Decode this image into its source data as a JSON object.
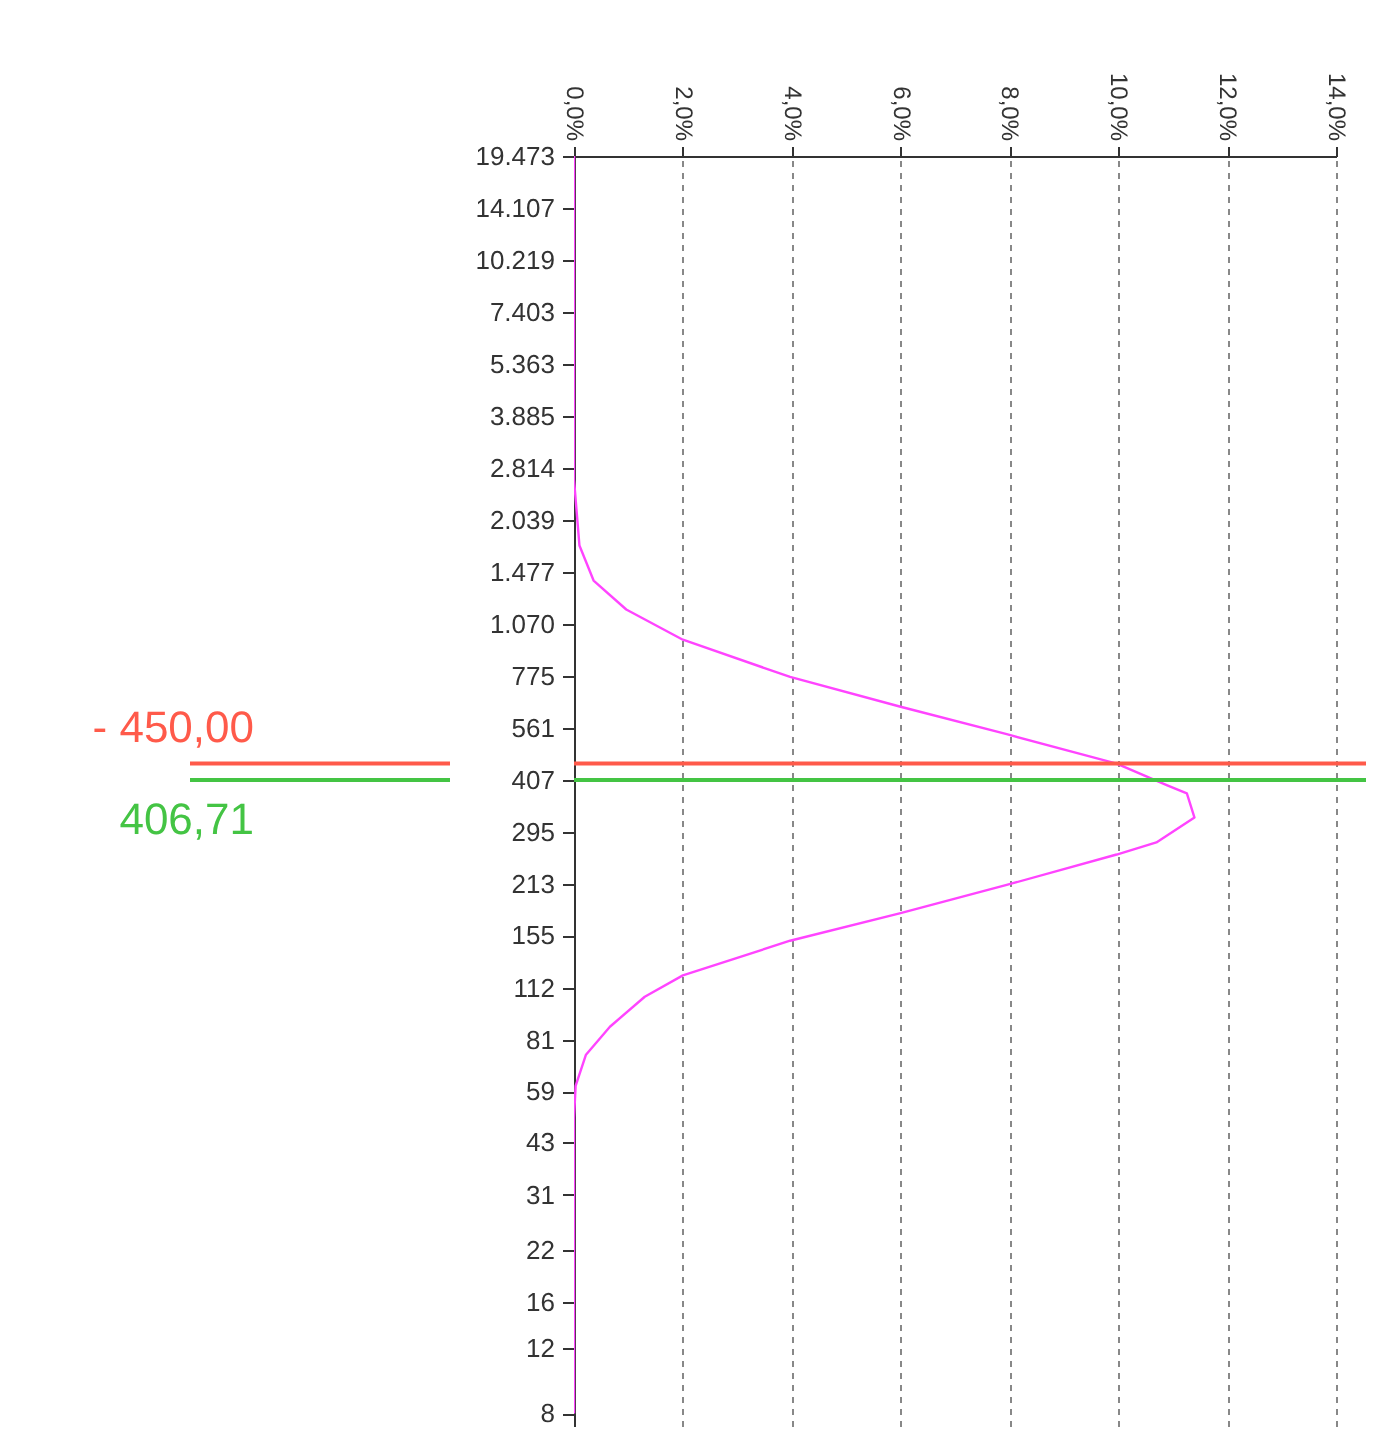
{
  "chart_data": {
    "type": "line",
    "log": "y",
    "grid": "x",
    "xlim": [
      0,
      14
    ],
    "ylim": [
      7.4,
      19473
    ],
    "xticks": [
      {
        "value": 0,
        "label": "0,0%"
      },
      {
        "value": 2,
        "label": "2,0%"
      },
      {
        "value": 4,
        "label": "4,0%"
      },
      {
        "value": 6,
        "label": "6,0%"
      },
      {
        "value": 8,
        "label": "8,0%"
      },
      {
        "value": 10,
        "label": "10,0%"
      },
      {
        "value": 12,
        "label": "12,0%"
      },
      {
        "value": 14,
        "label": "14,0%"
      }
    ],
    "yticks": [
      {
        "value": 19473,
        "label": "19.473"
      },
      {
        "value": 14107,
        "label": "14.107"
      },
      {
        "value": 10219,
        "label": "10.219"
      },
      {
        "value": 7403,
        "label": "7.403"
      },
      {
        "value": 5363,
        "label": "5.363"
      },
      {
        "value": 3885,
        "label": "3.885"
      },
      {
        "value": 2814,
        "label": "2.814"
      },
      {
        "value": 2039,
        "label": "2.039"
      },
      {
        "value": 1477,
        "label": "1.477"
      },
      {
        "value": 1070,
        "label": "1.070"
      },
      775,
      561,
      407,
      295,
      213,
      155,
      112,
      81,
      59,
      43,
      31,
      22,
      16,
      12,
      8
    ],
    "series": [
      {
        "color": "#ff44ff",
        "x": [
          0,
          0,
          0.1,
          0.36,
          0.96,
          2.0,
          3.97,
          6.0,
          7.95,
          9.97,
          10.9,
          11.26,
          11.4,
          10.7,
          9.97,
          7.95,
          6.0,
          3.97,
          2.0,
          1.3,
          0.66,
          0.22,
          0.03,
          0,
          0
        ],
        "values": [
          19473,
          2620,
          1740,
          1400,
          1170,
          970,
          770,
          640,
          540,
          450,
          393,
          374,
          322,
          276,
          256,
          212,
          178,
          150,
          121,
          106,
          88,
          74,
          61,
          50,
          8
        ]
      }
    ],
    "annotations": [
      "- 450,00"
    ],
    "ref_lines": [
      {
        "axis": "y",
        "value": 450,
        "color": "#ff5a4a"
      },
      {
        "axis": "y",
        "value": 406.71,
        "label": "406,71",
        "color": "#44c444"
      }
    ]
  }
}
